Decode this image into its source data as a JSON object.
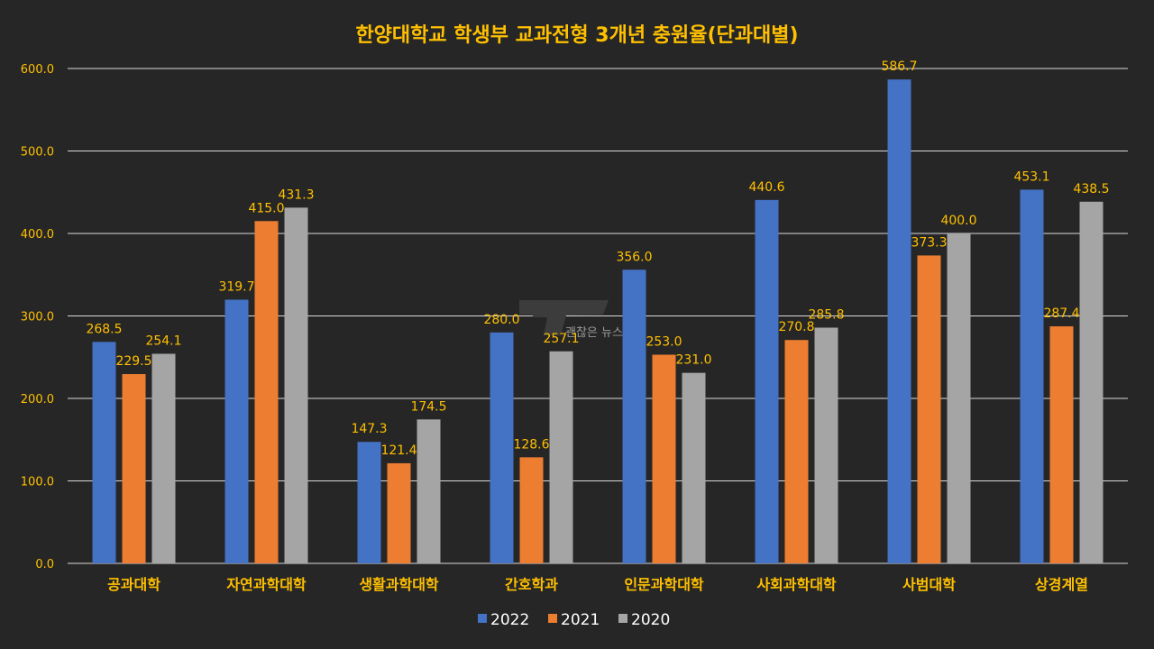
{
  "chart_data": {
    "type": "bar",
    "title": "한양대학교 학생부 교과전형 3개년 충원율(단과대별)",
    "xlabel": "",
    "ylabel": "",
    "ylim": [
      0,
      600
    ],
    "yticks": [
      "0.0",
      "100.0",
      "200.0",
      "300.0",
      "400.0",
      "500.0",
      "600.0"
    ],
    "grid": true,
    "legend_position": "bottom",
    "categories": [
      "공과대학",
      "자연과학대학",
      "생활과학대학",
      "간호학과",
      "인문과학대학",
      "사회과학대학",
      "사범대학",
      "상경계열"
    ],
    "series": [
      {
        "name": "2022",
        "color": "#4472C4",
        "values": [
          268.5,
          319.7,
          147.3,
          280.0,
          356.0,
          440.6,
          586.7,
          453.1
        ]
      },
      {
        "name": "2021",
        "color": "#ED7D31",
        "values": [
          229.5,
          415.0,
          121.4,
          128.6,
          253.0,
          270.8,
          373.3,
          287.4
        ]
      },
      {
        "name": "2020",
        "color": "#A5A5A5",
        "values": [
          254.1,
          431.3,
          174.5,
          257.1,
          231.0,
          285.8,
          400.0,
          438.5
        ]
      }
    ]
  },
  "watermark": {
    "text": "괜찮은 뉴스"
  },
  "colors": {
    "background": "#262626",
    "title": "#FFC000",
    "tick_label": "#FFC000",
    "category_label": "#FFC000",
    "data_label": "#FFC000",
    "legend_text": "#FFFFFF",
    "grid": "#D9D9D9",
    "watermark": "#9A9A9A"
  }
}
